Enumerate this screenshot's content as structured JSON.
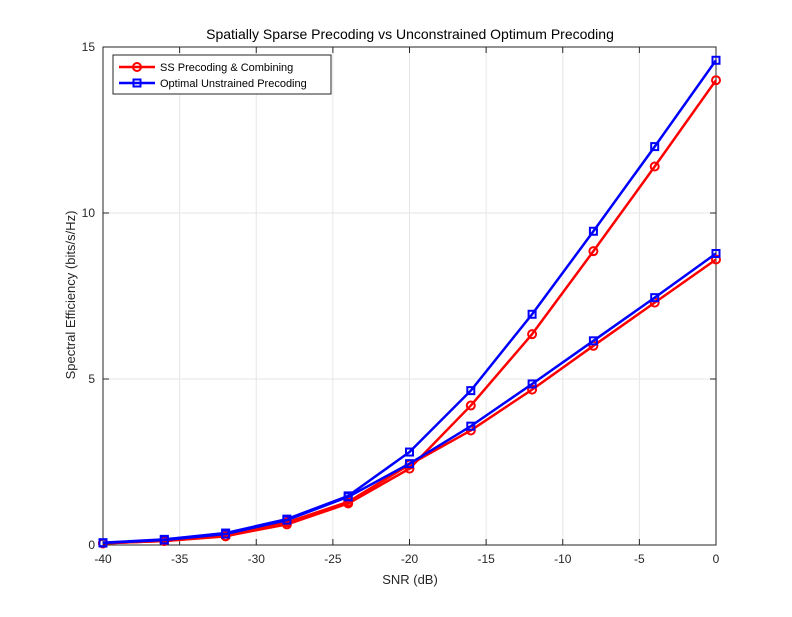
{
  "chart_data": {
    "type": "line",
    "title": "Spatially Sparse Precoding  vs Unconstrained Optimum Precoding",
    "xlabel": "SNR (dB)",
    "ylabel": "Spectral Efficiency (bits/s/Hz)",
    "xlim": [
      -40,
      0
    ],
    "ylim": [
      0,
      15
    ],
    "xticks": [
      -40,
      -35,
      -30,
      -25,
      -20,
      -15,
      -10,
      -5,
      0
    ],
    "yticks": [
      0,
      5,
      10,
      15
    ],
    "grid": true,
    "legend_position": "top-left",
    "x": [
      -40,
      -36,
      -32,
      -28,
      -24,
      -20,
      -16,
      -12,
      -8,
      -4,
      0
    ],
    "series": [
      {
        "name": "SS Precoding & Combining",
        "color": "#ff0000",
        "marker": "circle",
        "values": [
          0.05,
          0.12,
          0.27,
          0.62,
          1.25,
          2.3,
          4.2,
          6.35,
          8.85,
          11.4,
          14.0
        ]
      },
      {
        "name": "Optimal Unstrained Precoding",
        "color": "#0000ff",
        "marker": "square",
        "values": [
          0.07,
          0.17,
          0.36,
          0.78,
          1.48,
          2.8,
          4.65,
          6.95,
          9.45,
          12.0,
          14.6
        ]
      },
      {
        "name": "",
        "color": "#ff0000",
        "marker": "circle",
        "show_in_legend": false,
        "values": [
          0.05,
          0.12,
          0.26,
          0.68,
          1.3,
          2.42,
          3.45,
          4.68,
          6.0,
          7.3,
          8.6
        ]
      },
      {
        "name": "",
        "color": "#0000ff",
        "marker": "square",
        "show_in_legend": false,
        "values": [
          0.06,
          0.15,
          0.33,
          0.75,
          1.45,
          2.45,
          3.58,
          4.85,
          6.15,
          7.45,
          8.78
        ]
      }
    ]
  }
}
